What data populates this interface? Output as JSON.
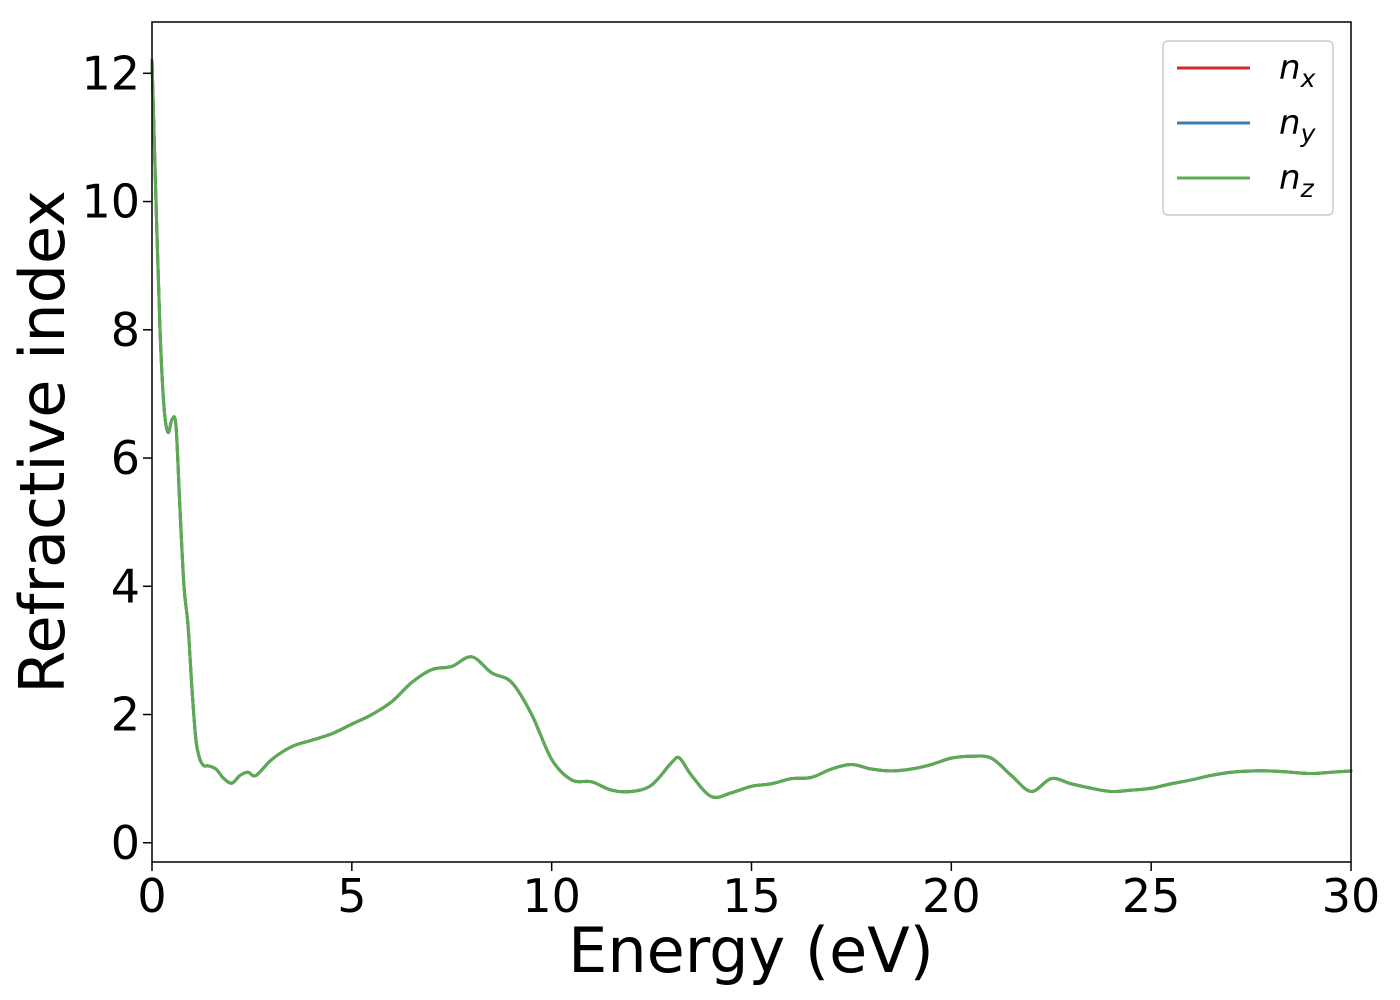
{
  "chart_data": {
    "type": "line",
    "title": "",
    "xlabel": "Energy (eV)",
    "ylabel": "Refractive index",
    "xlim": [
      0,
      30
    ],
    "ylim": [
      -0.3,
      12.8
    ],
    "xticks": [
      0,
      5,
      10,
      15,
      20,
      25,
      30
    ],
    "xtick_labels": [
      "0",
      "5",
      "10",
      "15",
      "20",
      "25",
      "30"
    ],
    "yticks": [
      0,
      2,
      4,
      6,
      8,
      10,
      12
    ],
    "ytick_labels": [
      "0",
      "2",
      "4",
      "6",
      "8",
      "10",
      "12"
    ],
    "grid": false,
    "legend_position": "top-right",
    "series": [
      {
        "name": "n_x",
        "legend_main": "n",
        "legend_sub": "x",
        "color": "#d62728",
        "x": [
          0,
          0.1,
          0.2,
          0.3,
          0.4,
          0.5,
          0.6,
          0.7,
          0.8,
          0.9,
          1.0,
          1.1,
          1.2,
          1.3,
          1.4,
          1.6,
          1.8,
          2.0,
          2.2,
          2.4,
          2.6,
          3.0,
          3.5,
          4.0,
          4.5,
          5.0,
          5.5,
          6.0,
          6.5,
          7.0,
          7.5,
          8.0,
          8.5,
          9.0,
          9.5,
          10.0,
          10.5,
          11.0,
          11.5,
          12.0,
          12.5,
          13.0,
          13.2,
          13.5,
          14.0,
          14.5,
          15.0,
          15.5,
          16.0,
          16.5,
          17.0,
          17.5,
          18.0,
          18.5,
          19.0,
          19.5,
          20.0,
          20.5,
          21.0,
          21.5,
          22.0,
          22.5,
          23.0,
          23.5,
          24.0,
          24.5,
          25.0,
          25.5,
          26.0,
          26.5,
          27.0,
          27.5,
          28.0,
          28.5,
          29.0,
          29.5,
          30.0
        ],
        "y": [
          12.2,
          10.0,
          8.0,
          6.8,
          6.4,
          6.6,
          6.5,
          5.2,
          4.0,
          3.4,
          2.4,
          1.6,
          1.3,
          1.2,
          1.2,
          1.15,
          1.0,
          0.93,
          1.05,
          1.1,
          1.05,
          1.3,
          1.5,
          1.6,
          1.7,
          1.85,
          2.0,
          2.2,
          2.5,
          2.7,
          2.75,
          2.9,
          2.65,
          2.5,
          2.0,
          1.3,
          0.98,
          0.95,
          0.82,
          0.8,
          0.9,
          1.25,
          1.32,
          1.05,
          0.72,
          0.78,
          0.88,
          0.92,
          1.0,
          1.02,
          1.15,
          1.22,
          1.15,
          1.12,
          1.15,
          1.22,
          1.32,
          1.35,
          1.32,
          1.05,
          0.8,
          1.0,
          0.92,
          0.85,
          0.8,
          0.82,
          0.85,
          0.92,
          0.98,
          1.05,
          1.1,
          1.12,
          1.12,
          1.1,
          1.08,
          1.1,
          1.12
        ]
      },
      {
        "name": "n_y",
        "legend_main": "n",
        "legend_sub": "y",
        "color": "#3b7dad",
        "x": [
          0,
          0.1,
          0.2,
          0.3,
          0.4,
          0.5,
          0.6,
          0.7,
          0.8,
          0.9,
          1.0,
          1.1,
          1.2,
          1.3,
          1.4,
          1.6,
          1.8,
          2.0,
          2.2,
          2.4,
          2.6,
          3.0,
          3.5,
          4.0,
          4.5,
          5.0,
          5.5,
          6.0,
          6.5,
          7.0,
          7.5,
          8.0,
          8.5,
          9.0,
          9.5,
          10.0,
          10.5,
          11.0,
          11.5,
          12.0,
          12.5,
          13.0,
          13.2,
          13.5,
          14.0,
          14.5,
          15.0,
          15.5,
          16.0,
          16.5,
          17.0,
          17.5,
          18.0,
          18.5,
          19.0,
          19.5,
          20.0,
          20.5,
          21.0,
          21.5,
          22.0,
          22.5,
          23.0,
          23.5,
          24.0,
          24.5,
          25.0,
          25.5,
          26.0,
          26.5,
          27.0,
          27.5,
          28.0,
          28.5,
          29.0,
          29.5,
          30.0
        ],
        "y": [
          12.2,
          10.0,
          8.0,
          6.8,
          6.4,
          6.6,
          6.5,
          5.2,
          4.0,
          3.4,
          2.4,
          1.6,
          1.3,
          1.2,
          1.2,
          1.15,
          1.0,
          0.93,
          1.05,
          1.1,
          1.05,
          1.3,
          1.5,
          1.6,
          1.7,
          1.85,
          2.0,
          2.2,
          2.5,
          2.7,
          2.75,
          2.9,
          2.65,
          2.5,
          2.0,
          1.3,
          0.98,
          0.95,
          0.82,
          0.8,
          0.9,
          1.25,
          1.32,
          1.05,
          0.72,
          0.78,
          0.88,
          0.92,
          1.0,
          1.02,
          1.15,
          1.22,
          1.15,
          1.12,
          1.15,
          1.22,
          1.32,
          1.35,
          1.32,
          1.05,
          0.8,
          1.0,
          0.92,
          0.85,
          0.8,
          0.82,
          0.85,
          0.92,
          0.98,
          1.05,
          1.1,
          1.12,
          1.12,
          1.1,
          1.08,
          1.1,
          1.12
        ]
      },
      {
        "name": "n_z",
        "legend_main": "n",
        "legend_sub": "z",
        "color": "#5aab52",
        "x": [
          0,
          0.1,
          0.2,
          0.3,
          0.4,
          0.5,
          0.6,
          0.7,
          0.8,
          0.9,
          1.0,
          1.1,
          1.2,
          1.3,
          1.4,
          1.6,
          1.8,
          2.0,
          2.2,
          2.4,
          2.6,
          3.0,
          3.5,
          4.0,
          4.5,
          5.0,
          5.5,
          6.0,
          6.5,
          7.0,
          7.5,
          8.0,
          8.5,
          9.0,
          9.5,
          10.0,
          10.5,
          11.0,
          11.5,
          12.0,
          12.5,
          13.0,
          13.2,
          13.5,
          14.0,
          14.5,
          15.0,
          15.5,
          16.0,
          16.5,
          17.0,
          17.5,
          18.0,
          18.5,
          19.0,
          19.5,
          20.0,
          20.5,
          21.0,
          21.5,
          22.0,
          22.5,
          23.0,
          23.5,
          24.0,
          24.5,
          25.0,
          25.5,
          26.0,
          26.5,
          27.0,
          27.5,
          28.0,
          28.5,
          29.0,
          29.5,
          30.0
        ],
        "y": [
          12.2,
          10.0,
          8.0,
          6.8,
          6.4,
          6.6,
          6.5,
          5.2,
          4.0,
          3.4,
          2.4,
          1.6,
          1.3,
          1.2,
          1.2,
          1.15,
          1.0,
          0.93,
          1.05,
          1.1,
          1.05,
          1.3,
          1.5,
          1.6,
          1.7,
          1.85,
          2.0,
          2.2,
          2.5,
          2.7,
          2.75,
          2.9,
          2.65,
          2.5,
          2.0,
          1.3,
          0.98,
          0.95,
          0.82,
          0.8,
          0.9,
          1.25,
          1.32,
          1.05,
          0.72,
          0.78,
          0.88,
          0.92,
          1.0,
          1.02,
          1.15,
          1.22,
          1.15,
          1.12,
          1.15,
          1.22,
          1.32,
          1.35,
          1.32,
          1.05,
          0.8,
          1.0,
          0.92,
          0.85,
          0.8,
          0.82,
          0.85,
          0.92,
          0.98,
          1.05,
          1.1,
          1.12,
          1.12,
          1.1,
          1.08,
          1.1,
          1.12
        ]
      }
    ]
  }
}
